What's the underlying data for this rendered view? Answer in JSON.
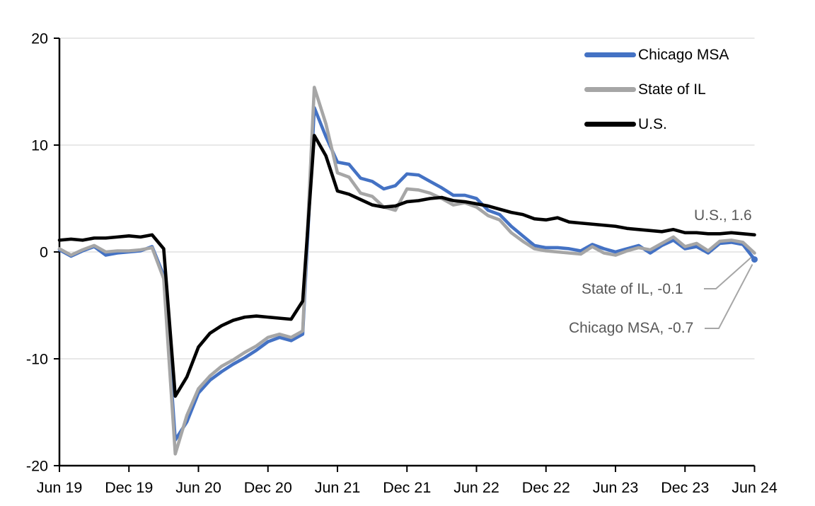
{
  "chart_data": {
    "type": "line",
    "title": "",
    "xlabel": "",
    "ylabel": "",
    "ylim": [
      -20,
      20
    ],
    "grid": "horizontal",
    "legend_position": "top-right-inside",
    "y_ticks": [
      20,
      10,
      0,
      -10,
      -20
    ],
    "x_tick_labels": [
      "Jun 19",
      "Dec 19",
      "Jun 20",
      "Dec 20",
      "Jun 21",
      "Dec 21",
      "Jun 22",
      "Dec 22",
      "Jun 23",
      "Dec 23",
      "Jun 24"
    ],
    "x_range_months": 60,
    "x_start": "Jun 2019",
    "x_end": "Jun 2024",
    "series": [
      {
        "name": "Chicago MSA",
        "color": "#4472C4",
        "end_value": -0.7,
        "end_marker": true,
        "values": [
          0.2,
          -0.4,
          0.1,
          0.5,
          -0.3,
          -0.1,
          0.0,
          0.1,
          0.5,
          -2.2,
          -17.6,
          -15.9,
          -13.2,
          -12.0,
          -11.2,
          -10.5,
          -9.9,
          -9.2,
          -8.4,
          -8.0,
          -8.3,
          -7.7,
          13.5,
          10.8,
          8.4,
          8.2,
          6.9,
          6.6,
          5.9,
          6.2,
          7.3,
          7.2,
          6.6,
          6.0,
          5.3,
          5.3,
          5.0,
          3.9,
          3.5,
          2.4,
          1.5,
          0.6,
          0.4,
          0.4,
          0.3,
          0.1,
          0.7,
          0.3,
          0.0,
          0.3,
          0.6,
          -0.1,
          0.6,
          1.1,
          0.3,
          0.5,
          -0.1,
          0.8,
          0.9,
          0.7,
          -0.7
        ]
      },
      {
        "name": "State of IL",
        "color": "#A6A6A6",
        "end_value": -0.1,
        "end_marker": false,
        "values": [
          0.3,
          -0.3,
          0.2,
          0.6,
          0.0,
          0.1,
          0.1,
          0.2,
          0.4,
          -2.5,
          -18.9,
          -15.3,
          -12.8,
          -11.6,
          -10.7,
          -10.1,
          -9.4,
          -8.8,
          -8.0,
          -7.7,
          -8.0,
          -7.4,
          15.4,
          12.0,
          7.4,
          7.0,
          5.5,
          5.2,
          4.2,
          3.9,
          5.9,
          5.8,
          5.5,
          5.0,
          4.4,
          4.6,
          4.2,
          3.4,
          3.0,
          1.8,
          1.0,
          0.3,
          0.1,
          0.0,
          -0.1,
          -0.2,
          0.5,
          -0.1,
          -0.3,
          0.1,
          0.4,
          0.2,
          0.8,
          1.4,
          0.5,
          0.8,
          0.1,
          1.0,
          1.1,
          0.9,
          -0.1
        ]
      },
      {
        "name": "U.S.",
        "color": "#000000",
        "end_value": 1.6,
        "end_marker": false,
        "values": [
          1.1,
          1.2,
          1.1,
          1.3,
          1.3,
          1.4,
          1.5,
          1.4,
          1.6,
          0.3,
          -13.5,
          -11.7,
          -8.9,
          -7.6,
          -6.9,
          -6.4,
          -6.1,
          -6.0,
          -6.1,
          -6.2,
          -6.3,
          -4.6,
          10.9,
          9.0,
          5.7,
          5.4,
          4.9,
          4.4,
          4.2,
          4.3,
          4.7,
          4.8,
          5.0,
          5.1,
          4.8,
          4.7,
          4.5,
          4.3,
          4.0,
          3.7,
          3.5,
          3.1,
          3.0,
          3.2,
          2.8,
          2.7,
          2.6,
          2.5,
          2.4,
          2.2,
          2.1,
          2.0,
          1.9,
          2.1,
          1.8,
          1.8,
          1.7,
          1.7,
          1.8,
          1.7,
          1.6
        ]
      }
    ],
    "annotations": [
      {
        "text": "U.S., 1.6"
      },
      {
        "text": "State of IL, -0.1"
      },
      {
        "text": "Chicago MSA, -0.7"
      }
    ]
  },
  "colors": {
    "gridline": "#D9D9D9",
    "axis": "#000000",
    "tick_label": "#000000",
    "annotation_text": "#595959",
    "leader_line": "#A6A6A6",
    "background": "#FFFFFF"
  }
}
